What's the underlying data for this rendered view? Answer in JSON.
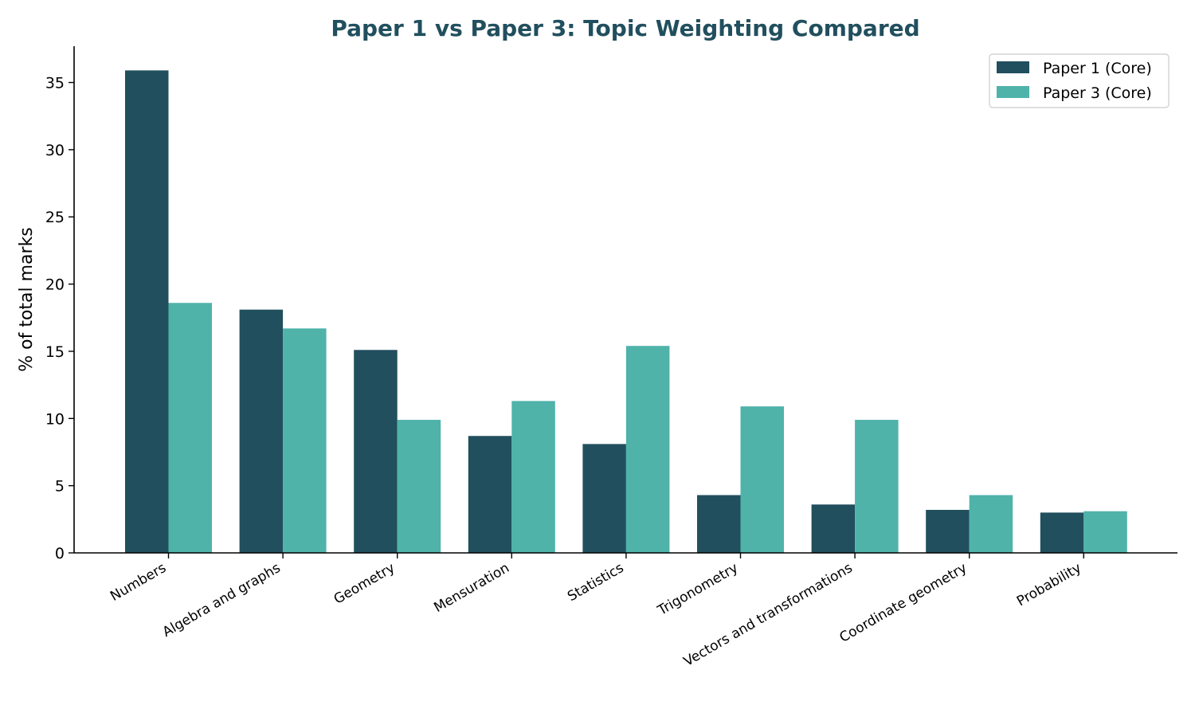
{
  "chart_data": {
    "type": "bar",
    "title": "Paper 1 vs Paper 3: Topic Weighting Compared",
    "xlabel": "",
    "ylabel": "% of total marks",
    "ylim": [
      0,
      37.7
    ],
    "yticks": [
      0,
      5,
      10,
      15,
      20,
      25,
      30,
      35
    ],
    "grid": false,
    "legend_position": "top-right",
    "categories": [
      "Numbers",
      "Algebra and graphs",
      "Geometry",
      "Mensuration",
      "Statistics",
      "Trigonometry",
      "Vectors and transformations",
      "Coordinate geometry",
      "Probability"
    ],
    "series": [
      {
        "name": "Paper 1 (Core)",
        "color": "#214f5e",
        "values": [
          35.9,
          18.1,
          15.1,
          8.7,
          8.1,
          4.3,
          3.6,
          3.2,
          3.0
        ]
      },
      {
        "name": "Paper 3 (Core)",
        "color": "#4fb3aa",
        "values": [
          18.6,
          16.7,
          9.9,
          11.3,
          15.4,
          10.9,
          9.9,
          4.3,
          3.1
        ]
      }
    ],
    "title_color": "#214f5e"
  }
}
